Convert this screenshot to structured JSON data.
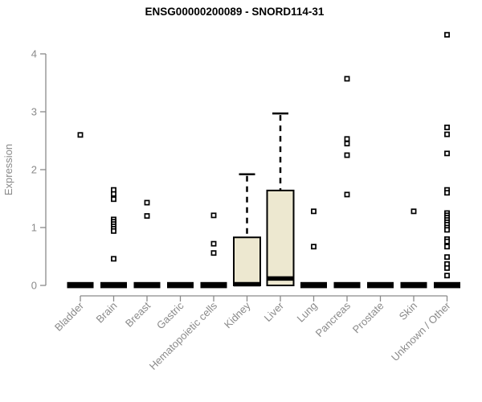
{
  "chart_data": {
    "type": "boxplot",
    "title": "ENSG00000200089 - SNORD114-31",
    "ylabel": "Expression",
    "xlabel": "",
    "ylim": [
      0,
      4.4
    ],
    "yticks": [
      0,
      1,
      2,
      3,
      4
    ],
    "grid": false,
    "legend": "none",
    "box_fill": "#EDE8D0",
    "box_stroke": "#000000",
    "axis_color": "#8a8a8a",
    "title_color": "#000000",
    "outlier_marker": "open-square",
    "categories": [
      "Bladder",
      "Brain",
      "Breast",
      "Gastric",
      "Hematopoietic cells",
      "Kidney",
      "Liver",
      "Lung",
      "Pancreas",
      "Prostate",
      "Skin",
      "Unknown / Other"
    ],
    "boxes": [
      {
        "category": "Bladder",
        "low": 0,
        "q1": 0,
        "median": 0,
        "q3": 0,
        "high": 0,
        "outliers": [
          2.6
        ]
      },
      {
        "category": "Brain",
        "low": 0,
        "q1": 0,
        "median": 0,
        "q3": 0,
        "high": 0,
        "outliers": [
          1.65,
          1.58,
          1.49,
          1.14,
          1.1,
          1.06,
          1.02,
          0.98,
          0.94,
          0.46
        ]
      },
      {
        "category": "Breast",
        "low": 0,
        "q1": 0,
        "median": 0,
        "q3": 0,
        "high": 0,
        "outliers": [
          1.43,
          1.2
        ]
      },
      {
        "category": "Gastric",
        "low": 0,
        "q1": 0,
        "median": 0,
        "q3": 0,
        "high": 0,
        "outliers": []
      },
      {
        "category": "Hematopoietic cells",
        "low": 0,
        "q1": 0,
        "median": 0,
        "q3": 0,
        "high": 0,
        "outliers": [
          1.21,
          0.72,
          0.56
        ]
      },
      {
        "category": "Kidney",
        "low": 0,
        "q1": 0,
        "median": 0.02,
        "q3": 0.83,
        "high": 1.92,
        "outliers": []
      },
      {
        "category": "Liver",
        "low": 0,
        "q1": 0,
        "median": 0.12,
        "q3": 1.64,
        "high": 2.97,
        "outliers": []
      },
      {
        "category": "Lung",
        "low": 0,
        "q1": 0,
        "median": 0,
        "q3": 0,
        "high": 0,
        "outliers": [
          1.28,
          0.67
        ]
      },
      {
        "category": "Pancreas",
        "low": 0,
        "q1": 0,
        "median": 0,
        "q3": 0,
        "high": 0,
        "outliers": [
          3.57,
          2.53,
          2.45,
          2.25,
          1.57
        ]
      },
      {
        "category": "Prostate",
        "low": 0,
        "q1": 0,
        "median": 0,
        "q3": 0,
        "high": 0,
        "outliers": []
      },
      {
        "category": "Skin",
        "low": 0,
        "q1": 0,
        "median": 0,
        "q3": 0,
        "high": 0,
        "outliers": [
          1.28
        ]
      },
      {
        "category": "Unknown / Other",
        "low": 0,
        "q1": 0,
        "median": 0,
        "q3": 0,
        "high": 0,
        "outliers": [
          4.33,
          2.73,
          2.61,
          2.28,
          1.65,
          1.6,
          1.25,
          1.21,
          1.17,
          1.13,
          1.09,
          1.05,
          1.0,
          0.96,
          0.8,
          0.76,
          0.67,
          0.49,
          0.37,
          0.3,
          0.17
        ]
      }
    ]
  }
}
